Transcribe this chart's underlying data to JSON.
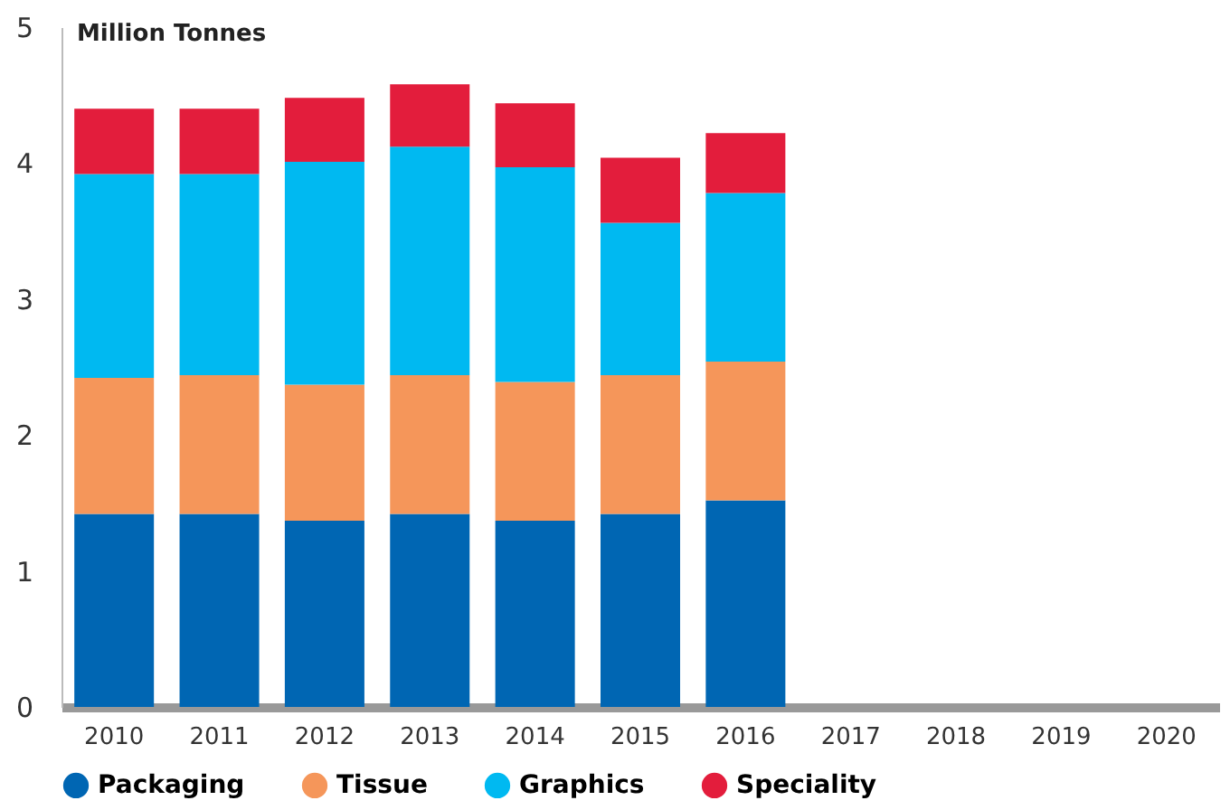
{
  "chart_data": {
    "type": "bar",
    "stacked": true,
    "ylabel": "Million Tonnes",
    "categories": [
      "2010",
      "2011",
      "2012",
      "2013",
      "2014",
      "2015",
      "2016",
      "2017",
      "2018",
      "2019",
      "2020"
    ],
    "series": [
      {
        "name": "Packaging",
        "color": "#0066b3",
        "values": [
          1.42,
          1.42,
          1.37,
          1.42,
          1.37,
          1.42,
          1.52,
          null,
          null,
          null,
          null
        ]
      },
      {
        "name": "Tissue",
        "color": "#f5965a",
        "values": [
          1.0,
          1.02,
          1.0,
          1.02,
          1.02,
          1.02,
          1.02,
          null,
          null,
          null,
          null
        ]
      },
      {
        "name": "Graphics",
        "color": "#00b9f1",
        "values": [
          1.5,
          1.48,
          1.64,
          1.68,
          1.58,
          1.12,
          1.24,
          null,
          null,
          null,
          null
        ]
      },
      {
        "name": "Speciality",
        "color": "#e31d3c",
        "values": [
          0.48,
          0.48,
          0.47,
          0.46,
          0.47,
          0.48,
          0.44,
          null,
          null,
          null,
          null
        ]
      }
    ],
    "ylim": [
      0,
      5
    ],
    "yticks": [
      0,
      1,
      2,
      3,
      4,
      5
    ],
    "grid": false,
    "legend": "bottom"
  }
}
